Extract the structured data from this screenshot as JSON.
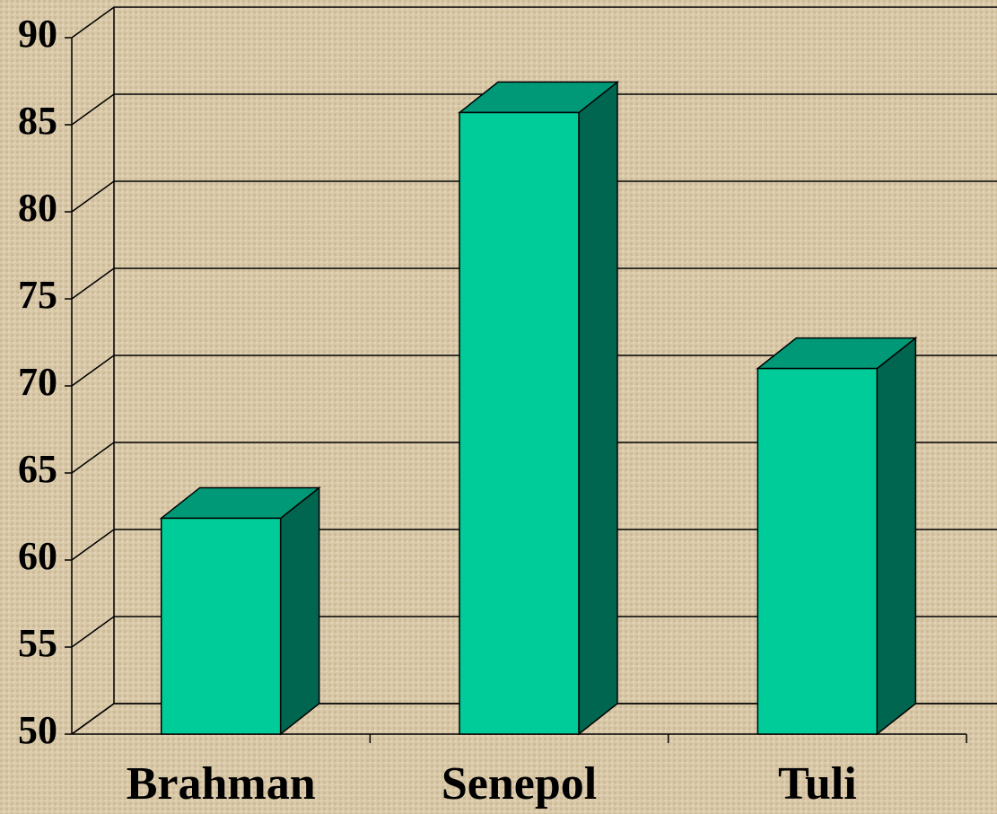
{
  "chart_data": {
    "type": "bar3d",
    "categories": [
      "Brahman",
      "Senepol",
      "Tuli"
    ],
    "values": [
      62.4,
      85.7,
      71.0
    ],
    "color": "#00cc99",
    "ylim": [
      50,
      90
    ],
    "yticks": [
      50,
      55,
      60,
      65,
      70,
      75,
      80,
      85,
      90
    ],
    "grid": true
  }
}
